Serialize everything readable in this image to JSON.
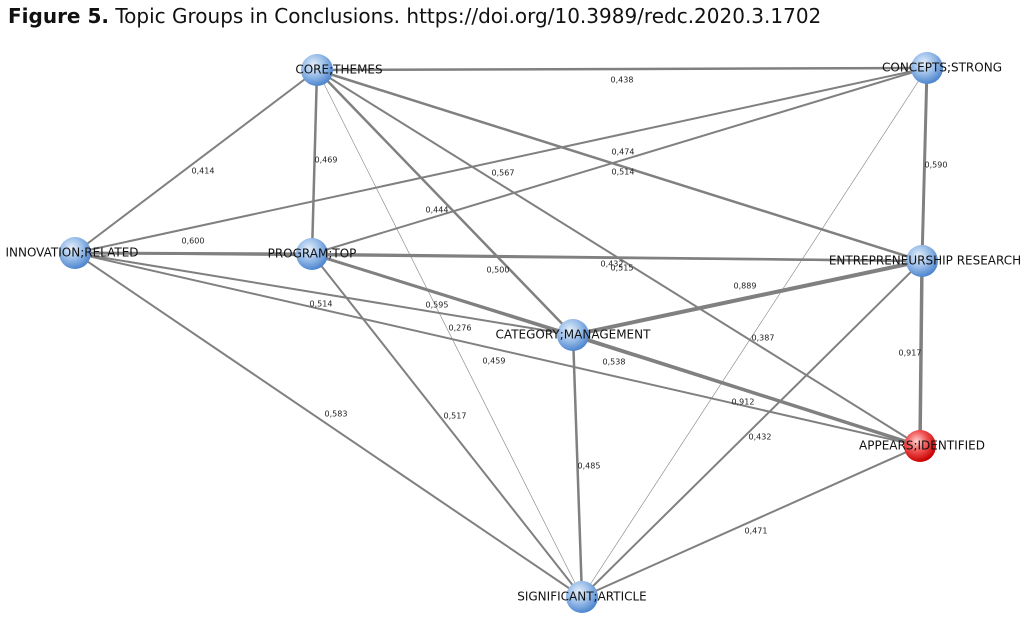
{
  "header": {
    "label": "Figure 5.",
    "text": "Topic Groups in Conclusions. https://doi.org/10.3989/redc.2020.3.1702"
  },
  "nodes": [
    "CORE;THEMES",
    "CONCEPTS;STRONG",
    "INNOVATION;RELATED",
    "PROGRAM;TOP",
    "ENTREPRENEURSHIP RESEARCH",
    "CATEGORY;MANAGEMENT",
    "APPEARS;IDENTIFIED",
    "SIGNIFICANT;ARTICLE"
  ],
  "edge_labels": [
    "0,438",
    "0,414",
    "0,469",
    "0,567",
    "0,444",
    "0,474",
    "0,514",
    "0,500",
    "0,276",
    "0,590",
    "0,600",
    "0,514",
    "0,432",
    "0,515",
    "0,595",
    "0,459",
    "0,889",
    "0,912",
    "0,538",
    "0,917",
    "0,432",
    "0,387",
    "0,485",
    "0,583",
    "0,517",
    "0,471"
  ]
}
